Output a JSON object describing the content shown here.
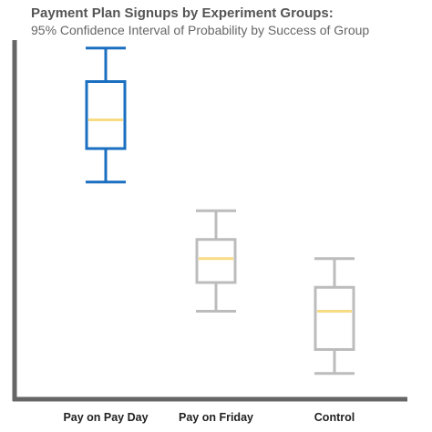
{
  "chart_data": {
    "type": "box",
    "title": "Payment Plan Signups by Experiment Groups:",
    "subtitle": "95% Confidence Interval of Probability by Success of Group",
    "xlabel": "",
    "ylabel": "",
    "categories": [
      "Pay on Pay Day",
      "Pay on Friday",
      "Control"
    ],
    "boxes": [
      {
        "category": "Pay on Pay Day",
        "whisker_low": 0.45,
        "q1": 0.52,
        "median": 0.58,
        "q3": 0.66,
        "whisker_high": 0.73
      },
      {
        "category": "Pay on Friday",
        "whisker_low": 0.18,
        "q1": 0.24,
        "median": 0.29,
        "q3": 0.33,
        "whisker_high": 0.39
      },
      {
        "category": "Control",
        "whisker_low": 0.05,
        "q1": 0.1,
        "median": 0.18,
        "q3": 0.23,
        "whisker_high": 0.29
      }
    ],
    "ylim": [
      0,
      0.8
    ],
    "grid": false,
    "legend": "none",
    "colors": {
      "highlight": "#1a6fc0",
      "default": "#bcbcbc",
      "median": "#f7dc84",
      "axis": "#666666"
    }
  }
}
